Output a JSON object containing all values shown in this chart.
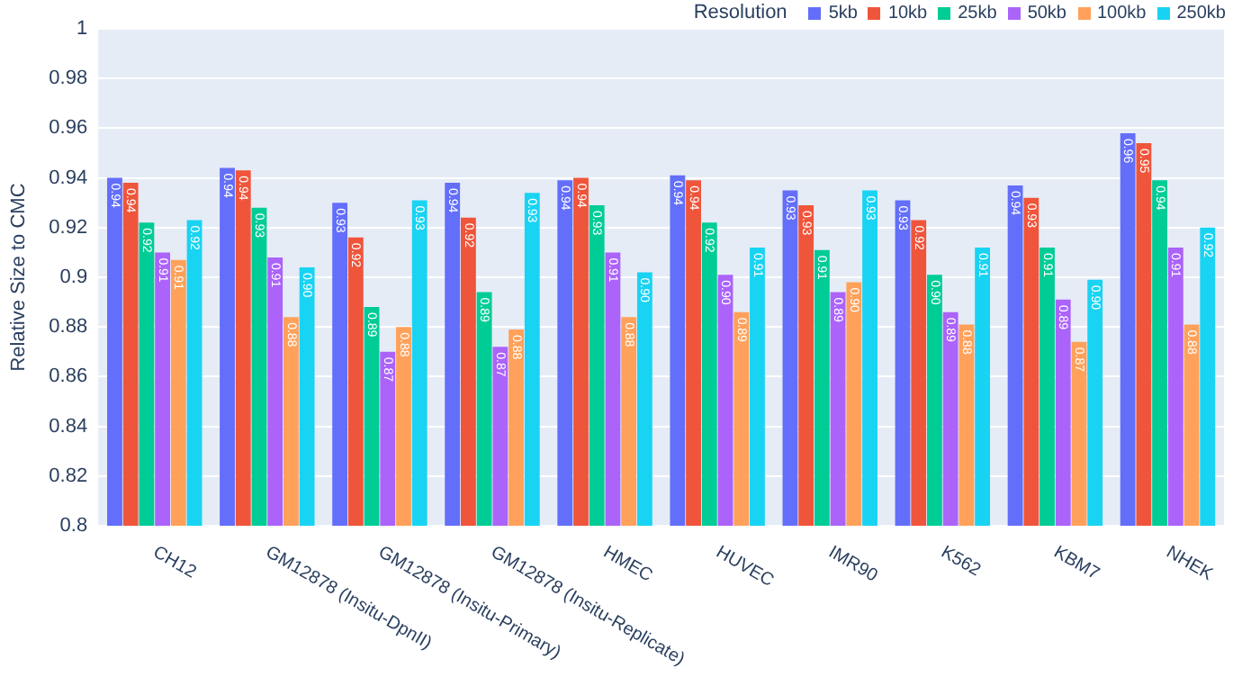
{
  "chart_data": {
    "type": "bar",
    "ylabel": "Relative Size to CMC",
    "legend_title": "Resolution",
    "legend": "top right",
    "grid": "y",
    "categories": [
      "CH12",
      "GM12878 (Insitu-DpnII)",
      "GM12878 (Insitu-Primary)",
      "GM12878 (Insitu-Replicate)",
      "HMEC",
      "HUVEC",
      "IMR90",
      "K562",
      "KBM7",
      "NHEK"
    ],
    "ylim": [
      0.8,
      1
    ],
    "yticks": [
      0.8,
      0.82,
      0.84,
      0.86,
      0.88,
      0.9,
      0.92,
      0.94,
      0.96,
      0.98,
      1
    ],
    "series": [
      {
        "name": "5kb",
        "color": "#636efa",
        "values": [
          0.94,
          0.944,
          0.93,
          0.938,
          0.939,
          0.941,
          0.935,
          0.931,
          0.937,
          0.958
        ],
        "value_labels": [
          "0.94",
          "0.94",
          "0.93",
          "0.94",
          "0.94",
          "0.94",
          "0.93",
          "0.93",
          "0.94",
          "0.96"
        ]
      },
      {
        "name": "10kb",
        "color": "#ef553b",
        "values": [
          0.938,
          0.943,
          0.916,
          0.924,
          0.94,
          0.939,
          0.929,
          0.923,
          0.932,
          0.954
        ],
        "value_labels": [
          "0.94",
          "0.94",
          "0.92",
          "0.92",
          "0.94",
          "0.94",
          "0.93",
          "0.92",
          "0.93",
          "0.95"
        ]
      },
      {
        "name": "25kb",
        "color": "#00cc96",
        "values": [
          0.922,
          0.928,
          0.888,
          0.894,
          0.929,
          0.922,
          0.911,
          0.901,
          0.912,
          0.939
        ],
        "value_labels": [
          "0.92",
          "0.93",
          "0.89",
          "0.89",
          "0.93",
          "0.92",
          "0.91",
          "0.90",
          "0.91",
          "0.94"
        ]
      },
      {
        "name": "50kb",
        "color": "#ab63fa",
        "values": [
          0.91,
          0.908,
          0.87,
          0.872,
          0.91,
          0.901,
          0.894,
          0.886,
          0.891,
          0.912
        ],
        "value_labels": [
          "0.91",
          "0.91",
          "0.87",
          "0.87",
          "0.91",
          "0.90",
          "0.89",
          "0.89",
          "0.89",
          "0.91"
        ]
      },
      {
        "name": "100kb",
        "color": "#ffa15a",
        "values": [
          0.907,
          0.884,
          0.88,
          0.879,
          0.884,
          0.886,
          0.898,
          0.881,
          0.874,
          0.881
        ],
        "value_labels": [
          "0.91",
          "0.88",
          "0.88",
          "0.88",
          "0.88",
          "0.89",
          "0.90",
          "0.88",
          "0.87",
          "0.88"
        ]
      },
      {
        "name": "250kb",
        "color": "#19d3f3",
        "values": [
          0.923,
          0.904,
          0.931,
          0.934,
          0.902,
          0.912,
          0.935,
          0.912,
          0.899,
          0.92
        ],
        "value_labels": [
          "0.92",
          "0.90",
          "0.93",
          "0.93",
          "0.90",
          "0.91",
          "0.93",
          "0.91",
          "0.90",
          "0.92"
        ]
      }
    ]
  }
}
